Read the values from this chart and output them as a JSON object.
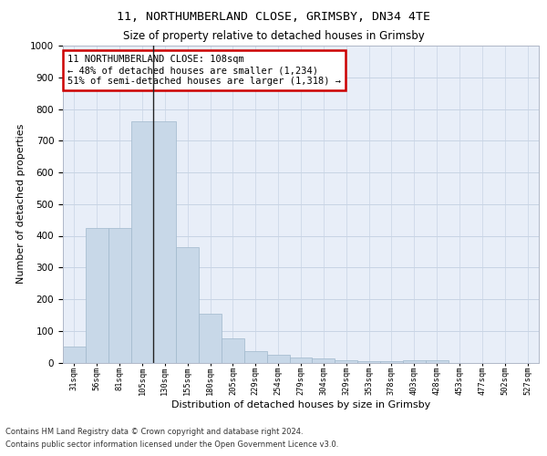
{
  "title1": "11, NORTHUMBERLAND CLOSE, GRIMSBY, DN34 4TE",
  "title2": "Size of property relative to detached houses in Grimsby",
  "xlabel": "Distribution of detached houses by size in Grimsby",
  "ylabel": "Number of detached properties",
  "categories": [
    "31sqm",
    "56sqm",
    "81sqm",
    "105sqm",
    "130sqm",
    "155sqm",
    "180sqm",
    "205sqm",
    "229sqm",
    "254sqm",
    "279sqm",
    "304sqm",
    "329sqm",
    "353sqm",
    "378sqm",
    "403sqm",
    "428sqm",
    "453sqm",
    "477sqm",
    "502sqm",
    "527sqm"
  ],
  "values": [
    50,
    425,
    425,
    760,
    760,
    365,
    155,
    75,
    37,
    25,
    15,
    12,
    7,
    5,
    5,
    8,
    8,
    0,
    0,
    0,
    0
  ],
  "bar_color": "#c8d8e8",
  "bar_edge_color": "#a0b8cc",
  "vline_x_index": 3.5,
  "vline_color": "#222222",
  "annotation_text": "11 NORTHUMBERLAND CLOSE: 108sqm\n← 48% of detached houses are smaller (1,234)\n51% of semi-detached houses are larger (1,318) →",
  "annotation_box_color": "#ffffff",
  "annotation_box_edge_color": "#cc0000",
  "annotation_fontsize": 7.5,
  "grid_color": "#c8d4e4",
  "background_color": "#e8eef8",
  "ylim": [
    0,
    1000
  ],
  "yticks": [
    0,
    100,
    200,
    300,
    400,
    500,
    600,
    700,
    800,
    900,
    1000
  ],
  "footnote1": "Contains HM Land Registry data © Crown copyright and database right 2024.",
  "footnote2": "Contains public sector information licensed under the Open Government Licence v3.0.",
  "title1_fontsize": 9.5,
  "title2_fontsize": 8.5,
  "xlabel_fontsize": 8,
  "ylabel_fontsize": 8
}
